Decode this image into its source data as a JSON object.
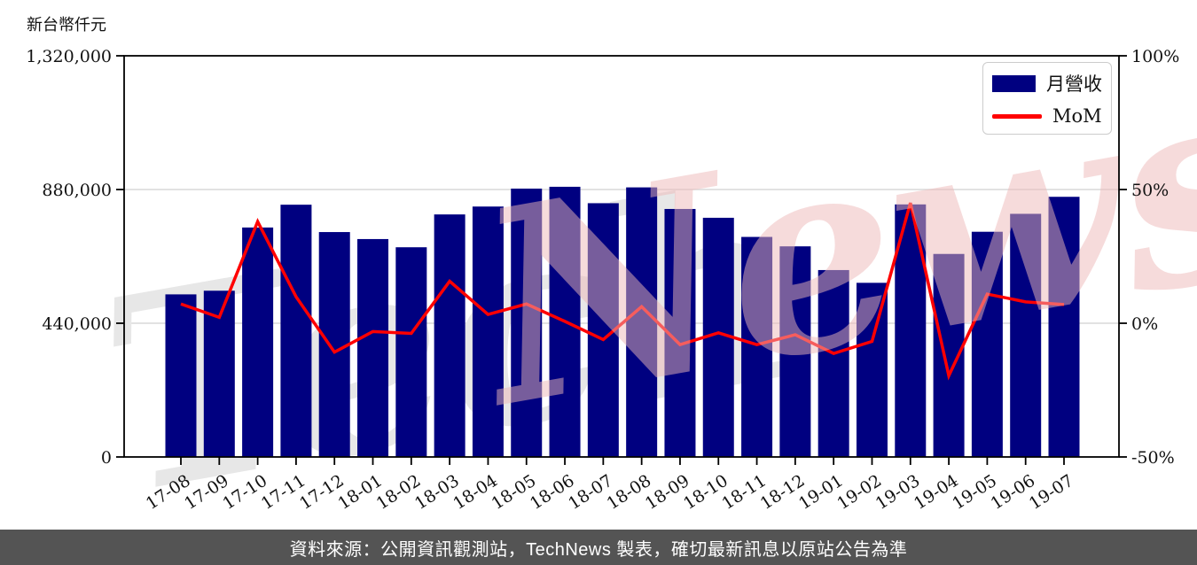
{
  "header": {
    "unit_label": "新台幣仟元"
  },
  "legend": {
    "position": "top-right",
    "items": [
      {
        "label": "月營收",
        "type": "bar",
        "color": "#000080"
      },
      {
        "label": "MoM",
        "type": "line",
        "color": "#ff0000"
      }
    ]
  },
  "watermark": {
    "text_left": "Tech",
    "text_right": "News",
    "color_left": "#e7e7e7",
    "color_right": "#eeb9b9"
  },
  "footer": {
    "text": "資料來源：公開資訊觀測站，TechNews 製表，確切最新訊息以原站公告為準"
  },
  "chart_data": {
    "type": "bar+line",
    "title": "",
    "categories": [
      "17-08",
      "17-09",
      "17-10",
      "17-11",
      "17-12",
      "18-01",
      "18-02",
      "18-03",
      "18-04",
      "18-05",
      "18-06",
      "18-07",
      "18-08",
      "18-09",
      "18-10",
      "18-11",
      "18-12",
      "19-01",
      "19-02",
      "19-03",
      "19-04",
      "19-05",
      "19-06",
      "19-07"
    ],
    "series": [
      {
        "name": "月營收",
        "kind": "bar",
        "axis": "left",
        "color": "#000080",
        "values": [
          535000,
          547000,
          755000,
          830000,
          740000,
          717000,
          690000,
          798000,
          824000,
          883000,
          889000,
          835000,
          887000,
          816000,
          787000,
          724000,
          693000,
          615000,
          573000,
          831000,
          668000,
          741000,
          800000,
          856000
        ]
      },
      {
        "name": "MoM",
        "kind": "line",
        "axis": "right",
        "color": "#ff0000",
        "values_pct": [
          7.2,
          2.2,
          38.0,
          9.9,
          -10.8,
          -3.1,
          -3.8,
          15.7,
          3.3,
          7.2,
          0.7,
          -6.1,
          6.2,
          -8.0,
          -3.6,
          -8.0,
          -4.3,
          -11.3,
          -6.8,
          45.0,
          -19.6,
          10.9,
          8.0,
          7.0
        ]
      }
    ],
    "left_axis": {
      "label": "新台幣仟元",
      "ticks": [
        0,
        440000,
        880000,
        1320000
      ],
      "range": [
        0,
        1320000
      ]
    },
    "right_axis": {
      "ticks_pct": [
        -50,
        0,
        50,
        100
      ],
      "range_pct": [
        -50,
        100
      ]
    },
    "grid": "horizontal-light",
    "grid_color": "#d9d9d9",
    "legend_position": "top-right"
  }
}
